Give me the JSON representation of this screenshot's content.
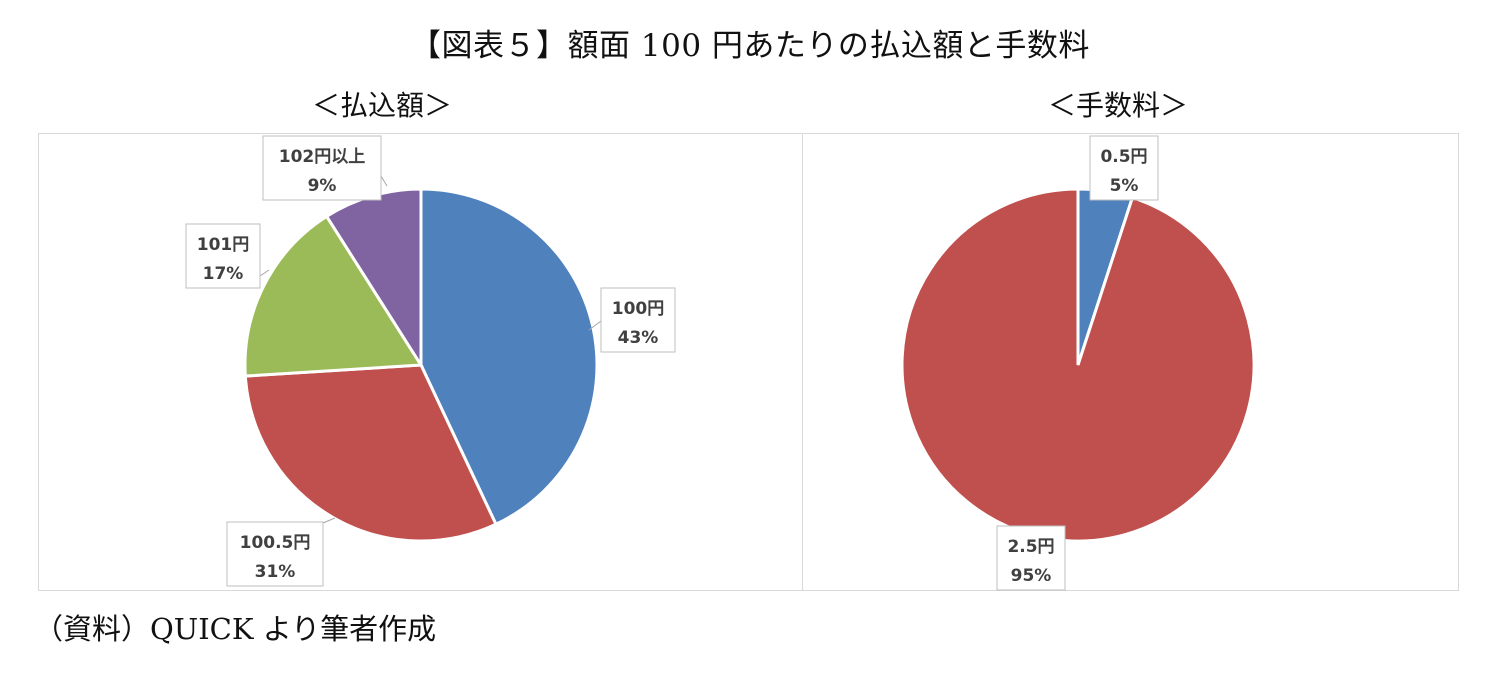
{
  "title": "【図表５】額面 100 円あたりの払込額と手数料",
  "source": "（資料）QUICK より筆者作成",
  "chart_data": [
    {
      "type": "pie",
      "title": "＜払込額＞",
      "slices": [
        {
          "label": "100円",
          "value": 43,
          "pct": "43%",
          "color": "#4f81bd"
        },
        {
          "label": "100.5円",
          "value": 31,
          "pct": "31%",
          "color": "#c0504d"
        },
        {
          "label": "101円",
          "value": 17,
          "pct": "17%",
          "color": "#9bbb59"
        },
        {
          "label": "102円以上",
          "value": 9,
          "pct": "9%",
          "color": "#8064a2"
        }
      ]
    },
    {
      "type": "pie",
      "title": "＜手数料＞",
      "slices": [
        {
          "label": "0.5円",
          "value": 5,
          "pct": "5%",
          "color": "#4f81bd"
        },
        {
          "label": "2.5円",
          "value": 95,
          "pct": "95%",
          "color": "#c0504d"
        }
      ]
    }
  ]
}
